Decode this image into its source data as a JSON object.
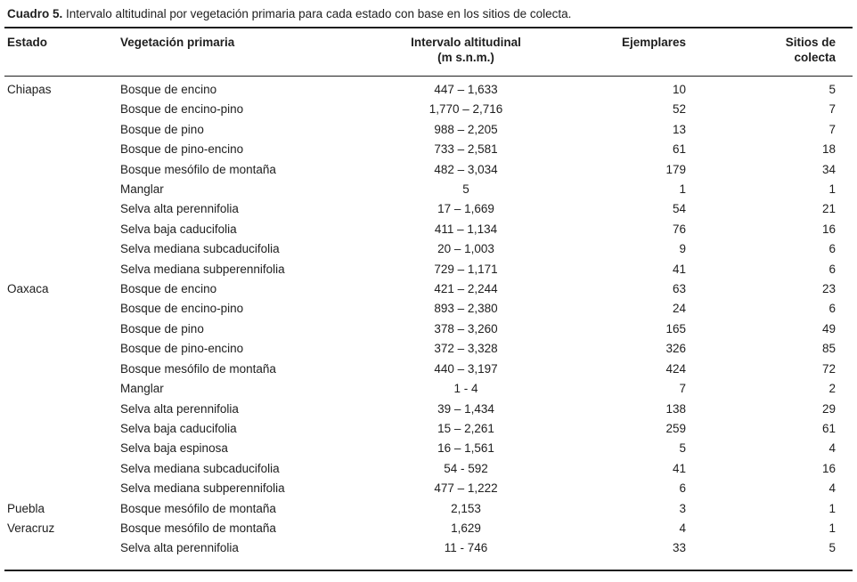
{
  "table": {
    "caption_label": "Cuadro 5.",
    "caption_text": "Intervalo altitudinal por vegetación primaria para cada estado con base en los sitios de colecta.",
    "columns": {
      "estado": "Estado",
      "vegetacion": "Vegetación primaria",
      "intervalo_line1": "Intervalo altitudinal",
      "intervalo_line2": "(m s.n.m.)",
      "ejemplares": "Ejemplares",
      "sitios_line1": "Sitios de",
      "sitios_line2": "colecta"
    },
    "rows": [
      {
        "estado": "Chiapas",
        "vegetacion": "Bosque de encino",
        "intervalo": "447 – 1,633",
        "ejemplares": "10",
        "sitios": "5"
      },
      {
        "estado": "",
        "vegetacion": "Bosque de encino-pino",
        "intervalo": "1,770 – 2,716",
        "ejemplares": "52",
        "sitios": "7"
      },
      {
        "estado": "",
        "vegetacion": "Bosque de pino",
        "intervalo": "988 – 2,205",
        "ejemplares": "13",
        "sitios": "7"
      },
      {
        "estado": "",
        "vegetacion": "Bosque de pino-encino",
        "intervalo": "733 – 2,581",
        "ejemplares": "61",
        "sitios": "18"
      },
      {
        "estado": "",
        "vegetacion": "Bosque mesófilo de montaña",
        "intervalo": "482 – 3,034",
        "ejemplares": "179",
        "sitios": "34"
      },
      {
        "estado": "",
        "vegetacion": "Manglar",
        "intervalo": "5",
        "ejemplares": "1",
        "sitios": "1"
      },
      {
        "estado": "",
        "vegetacion": "Selva alta perennifolia",
        "intervalo": "17 – 1,669",
        "ejemplares": "54",
        "sitios": "21"
      },
      {
        "estado": "",
        "vegetacion": "Selva baja caducifolia",
        "intervalo": "411 – 1,134",
        "ejemplares": "76",
        "sitios": "16"
      },
      {
        "estado": "",
        "vegetacion": "Selva mediana subcaducifolia",
        "intervalo": "20 – 1,003",
        "ejemplares": "9",
        "sitios": "6"
      },
      {
        "estado": "",
        "vegetacion": "Selva mediana subperennifolia",
        "intervalo": "729 – 1,171",
        "ejemplares": "41",
        "sitios": "6"
      },
      {
        "estado": "Oaxaca",
        "vegetacion": "Bosque de encino",
        "intervalo": "421 – 2,244",
        "ejemplares": "63",
        "sitios": "23"
      },
      {
        "estado": "",
        "vegetacion": "Bosque de encino-pino",
        "intervalo": "893 – 2,380",
        "ejemplares": "24",
        "sitios": "6"
      },
      {
        "estado": "",
        "vegetacion": "Bosque de pino",
        "intervalo": "378 – 3,260",
        "ejemplares": "165",
        "sitios": "49"
      },
      {
        "estado": "",
        "vegetacion": "Bosque de pino-encino",
        "intervalo": "372 – 3,328",
        "ejemplares": "326",
        "sitios": "85"
      },
      {
        "estado": "",
        "vegetacion": "Bosque mesófilo de montaña",
        "intervalo": "440 – 3,197",
        "ejemplares": "424",
        "sitios": "72"
      },
      {
        "estado": "",
        "vegetacion": "Manglar",
        "intervalo": "1 - 4",
        "ejemplares": "7",
        "sitios": "2"
      },
      {
        "estado": "",
        "vegetacion": "Selva alta perennifolia",
        "intervalo": "39 – 1,434",
        "ejemplares": "138",
        "sitios": "29"
      },
      {
        "estado": "",
        "vegetacion": "Selva baja caducifolia",
        "intervalo": "15 – 2,261",
        "ejemplares": "259",
        "sitios": "61"
      },
      {
        "estado": "",
        "vegetacion": "Selva baja espinosa",
        "intervalo": "16 – 1,561",
        "ejemplares": "5",
        "sitios": "4"
      },
      {
        "estado": "",
        "vegetacion": "Selva mediana subcaducifolia",
        "intervalo": "54 - 592",
        "ejemplares": "41",
        "sitios": "16"
      },
      {
        "estado": "",
        "vegetacion": "Selva mediana subperennifolia",
        "intervalo": "477 – 1,222",
        "ejemplares": "6",
        "sitios": "4"
      },
      {
        "estado": "Puebla",
        "vegetacion": "Bosque mesófilo de montaña",
        "intervalo": "2,153",
        "ejemplares": "3",
        "sitios": "1"
      },
      {
        "estado": "Veracruz",
        "vegetacion": "Bosque mesófilo de montaña",
        "intervalo": "1,629",
        "ejemplares": "4",
        "sitios": "1"
      },
      {
        "estado": "",
        "vegetacion": "Selva alta perennifolia",
        "intervalo": "11 - 746",
        "ejemplares": "33",
        "sitios": "5"
      }
    ]
  },
  "colors": {
    "text": "#1e1e1e",
    "rule": "#1e1e1e",
    "background": "#ffffff"
  }
}
